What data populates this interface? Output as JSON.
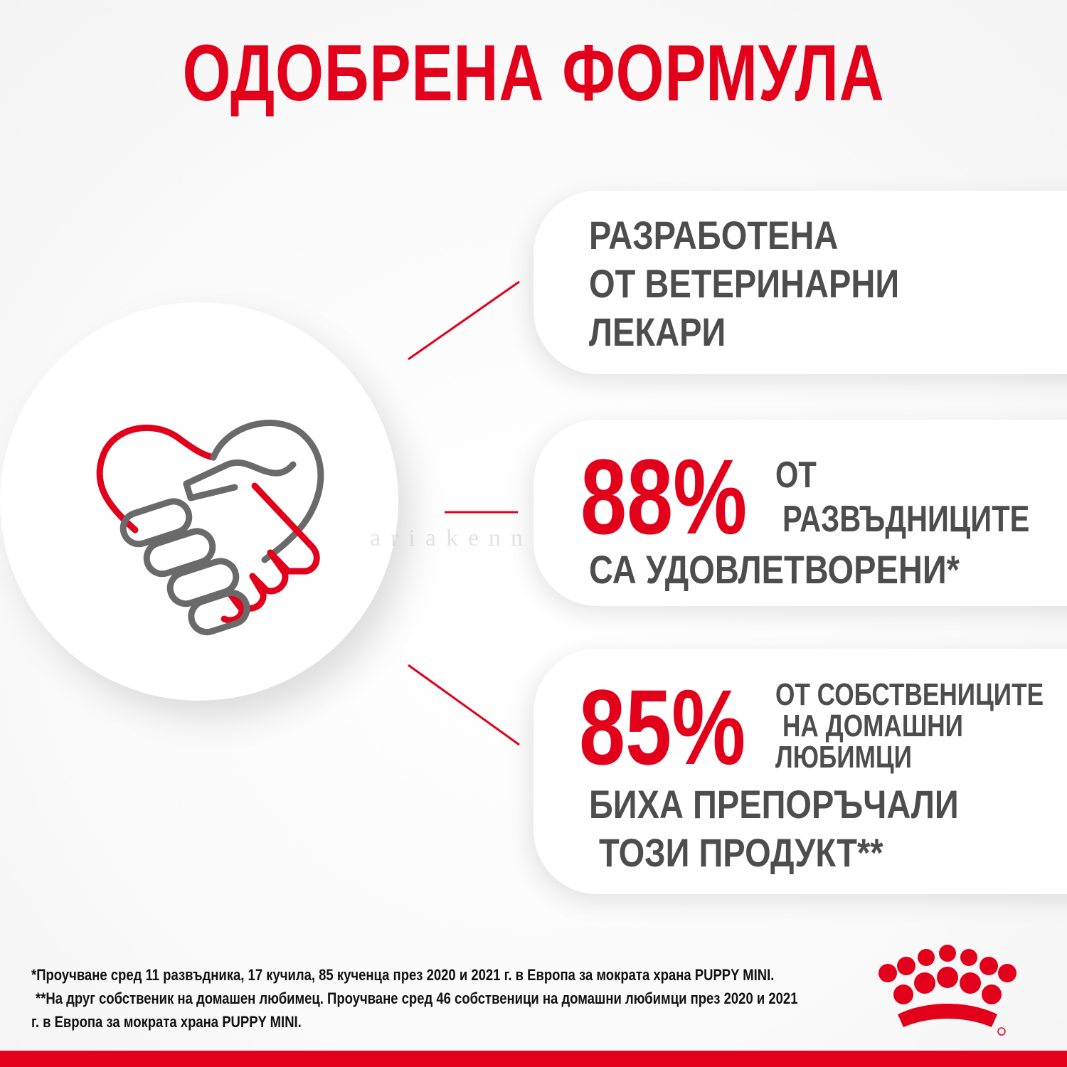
{
  "title": "ОДОБРЕНА ФОРМУЛА",
  "card1": {
    "line1": "РАЗРАБОТЕНА",
    "line2": "ОТ ВЕТЕРИНАРНИ",
    "line3": "ЛЕКАРИ"
  },
  "card2": {
    "percent": "88%",
    "line1": "ОТ",
    "line2": "РАЗВЪДНИЦИТЕ",
    "line3": "СА УДОВЛЕТВОРЕНИ*"
  },
  "card3": {
    "percent": "85%",
    "line1": "ОТ СОБСТВЕНИЦИТЕ",
    "line2": "НА ДОМАШНИ",
    "line3": "ЛЮБИМЦИ",
    "line4": "БИХА ПРЕПОРЪЧАЛИ",
    "line5": "ТОЗИ ПРОДУКТ**"
  },
  "footnotes": {
    "line1": "*Проучване сред 11 развъдника, 17 кучила, 85 кученца през 2020 и 2021 г. в Европа за мократа храна PUPPY MINI.",
    "line2": "**На друг собственик на домашен любимец. Проучване сред 46 собственици на домашни любимци през 2020 и 2021",
    "line3": "г. в Европа за мократа храна PUPPY MINI."
  },
  "watermark": "ariakennel.com",
  "icons": {
    "center": "handshake-heart-icon",
    "brand": "crown-logo-icon"
  },
  "colors": {
    "accent": "#e2001a",
    "text": "#4d4d4d",
    "icon_gray": "#6a6a6a"
  }
}
